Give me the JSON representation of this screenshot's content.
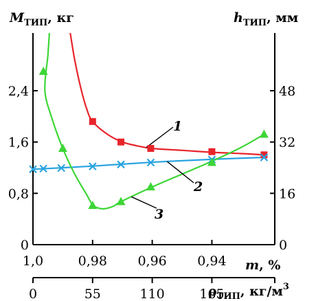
{
  "chart_data": {
    "type": "line",
    "title": "",
    "left_axis": {
      "label_main": "M",
      "label_sub": "ТИП",
      "label_unit": ", кг",
      "ylim": [
        0,
        3.3
      ],
      "ticks": [
        {
          "v": 0,
          "t": "0"
        },
        {
          "v": 0.8,
          "t": "0,8"
        },
        {
          "v": 1.6,
          "t": "1,6"
        },
        {
          "v": 2.4,
          "t": "2,4"
        }
      ]
    },
    "right_axis": {
      "label_main": "h",
      "label_sub": "ТИП",
      "label_unit": ", мм",
      "ylim": [
        0,
        66
      ],
      "ticks": [
        {
          "v": 0,
          "t": "0"
        },
        {
          "v": 16,
          "t": "16"
        },
        {
          "v": 32,
          "t": "32"
        },
        {
          "v": 48,
          "t": "48"
        }
      ]
    },
    "x_axis_m": {
      "label_main": "m",
      "label_unit": ", %",
      "xlim": [
        1.0,
        0.9189
      ],
      "ticks": [
        {
          "v": 1.0,
          "t": "1,0"
        },
        {
          "v": 0.98,
          "t": "0,98"
        },
        {
          "v": 0.96,
          "t": "0,96"
        },
        {
          "v": 0.94,
          "t": "0,94"
        }
      ]
    },
    "x_axis_rho": {
      "label_main": "ρ",
      "label_sub": "ТИП",
      "label_unit": ", кг/м",
      "label_sup": "3",
      "ticks": [
        {
          "v": 0,
          "t": "0"
        },
        {
          "v": 55,
          "t": "55"
        },
        {
          "v": 110,
          "t": "110"
        },
        {
          "v": 165,
          "t": "165"
        }
      ]
    },
    "series": [
      {
        "id": "1",
        "label": "1",
        "axis": "left",
        "color": "#e8242a",
        "marker": "square",
        "curve": [
          [
            0.9875,
            3.3
          ],
          [
            0.986,
            2.88
          ],
          [
            0.984,
            2.45
          ],
          [
            0.982,
            2.12
          ],
          [
            0.98,
            1.92
          ],
          [
            0.975,
            1.72
          ],
          [
            0.97,
            1.6
          ],
          [
            0.965,
            1.54
          ],
          [
            0.96,
            1.5
          ],
          [
            0.95,
            1.47
          ],
          [
            0.94,
            1.44
          ],
          [
            0.93,
            1.42
          ],
          [
            0.9225,
            1.4
          ]
        ],
        "markers": [
          [
            0.98,
            1.92
          ],
          [
            0.9705,
            1.6
          ],
          [
            0.9605,
            1.5
          ],
          [
            0.94,
            1.45
          ],
          [
            0.9225,
            1.4
          ]
        ]
      },
      {
        "id": "2",
        "label": "2",
        "axis": "right",
        "color": "#29a3e0",
        "marker": "x",
        "curve": [
          [
            1.0,
            23.5
          ],
          [
            0.98,
            24.5
          ],
          [
            0.96,
            25.7
          ],
          [
            0.94,
            26.6
          ],
          [
            0.9225,
            27.2
          ]
        ],
        "markers": [
          [
            1.0,
            23.5
          ],
          [
            0.9965,
            23.7
          ],
          [
            0.9905,
            23.9
          ],
          [
            0.98,
            24.4
          ],
          [
            0.9705,
            25.0
          ],
          [
            0.9605,
            25.6
          ],
          [
            0.94,
            26.5
          ],
          [
            0.9225,
            27.2
          ]
        ]
      },
      {
        "id": "3",
        "label": "3",
        "axis": "left",
        "color": "#3dd636",
        "marker": "triangle",
        "curve": [
          [
            0.9945,
            3.3
          ],
          [
            0.995,
            2.95
          ],
          [
            0.996,
            2.4
          ],
          [
            0.9935,
            1.95
          ],
          [
            0.99,
            1.5
          ],
          [
            0.986,
            1.1
          ],
          [
            0.982,
            0.78
          ],
          [
            0.98,
            0.62
          ],
          [
            0.978,
            0.57
          ],
          [
            0.976,
            0.56
          ],
          [
            0.973,
            0.6
          ],
          [
            0.9705,
            0.67
          ],
          [
            0.96,
            0.9
          ],
          [
            0.95,
            1.1
          ],
          [
            0.94,
            1.3
          ],
          [
            0.93,
            1.52
          ],
          [
            0.9225,
            1.72
          ]
        ],
        "markers": [
          [
            0.9965,
            2.7
          ],
          [
            0.99,
            1.5
          ],
          [
            0.98,
            0.61
          ],
          [
            0.9705,
            0.67
          ],
          [
            0.9605,
            0.9
          ],
          [
            0.94,
            1.28
          ],
          [
            0.9225,
            1.72
          ]
        ]
      }
    ]
  }
}
